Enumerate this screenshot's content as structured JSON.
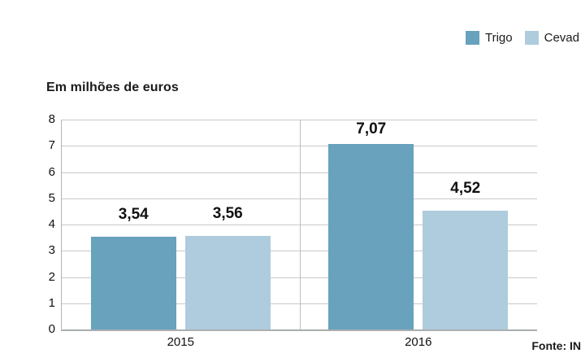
{
  "legend": {
    "position": "top-right",
    "items": [
      {
        "label": "Trigo",
        "color": "#68a2bd"
      },
      {
        "label": "Cevad",
        "color": "#aeccdd"
      }
    ]
  },
  "chart_data": {
    "type": "bar",
    "title": "Em milhões de euros",
    "categories": [
      "2015",
      "2016"
    ],
    "series": [
      {
        "name": "Trigo",
        "color": "#68a2bd",
        "values": [
          3.54,
          7.07
        ],
        "labels": [
          "3,54",
          "7,07"
        ]
      },
      {
        "name": "Cevad",
        "color": "#aeccdd",
        "values": [
          3.56,
          4.52
        ],
        "labels": [
          "3,56",
          "4,52"
        ]
      }
    ],
    "ylim": [
      0,
      8
    ],
    "yticks": [
      "0",
      "1",
      "2",
      "3",
      "4",
      "5",
      "6",
      "7",
      "8"
    ],
    "grid": "horizontal",
    "legend_position": "top-right",
    "source": "Fonte: IN"
  },
  "source_note": "Fonte: IN",
  "colors": {
    "grid": "#c9c9c9",
    "axis": "#a9aeb0",
    "text": "#1a1a1a"
  }
}
